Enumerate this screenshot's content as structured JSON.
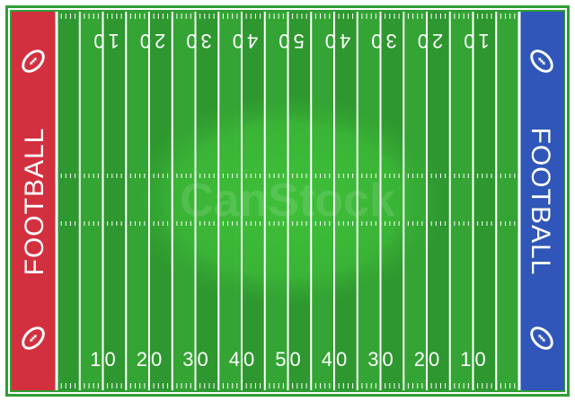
{
  "field": {
    "colors": {
      "outer_green": "#2f9e33",
      "turf_green": "#34a434",
      "stripe_dark": "#2e972f",
      "center_glow": "#3fbf3a",
      "line_white": "#ffffff",
      "left_endzone": "#d3303f",
      "right_endzone": "#2f56b8"
    },
    "endzones": {
      "left_label": "FOOTBALL",
      "right_label": "FOOTBALL"
    },
    "top_numbers": [
      "10",
      "20",
      "30",
      "40",
      "50",
      "40",
      "30",
      "20",
      "10"
    ],
    "bottom_numbers": [
      "10",
      "20",
      "30",
      "40",
      "50",
      "40",
      "30",
      "20",
      "10"
    ],
    "ball_icons": [
      "football-icon",
      "football-icon",
      "football-icon",
      "football-icon"
    ],
    "watermark": "CanStock"
  }
}
